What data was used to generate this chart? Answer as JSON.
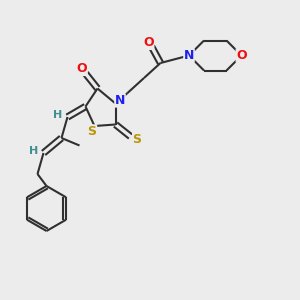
{
  "bg_color": "#ececec",
  "atom_colors": {
    "C": "#303030",
    "N": "#2020ee",
    "O": "#ee1010",
    "S": "#b8980a",
    "H": "#409090"
  },
  "bond_color": "#303030",
  "figsize": [
    3.0,
    3.0
  ],
  "dpi": 100
}
